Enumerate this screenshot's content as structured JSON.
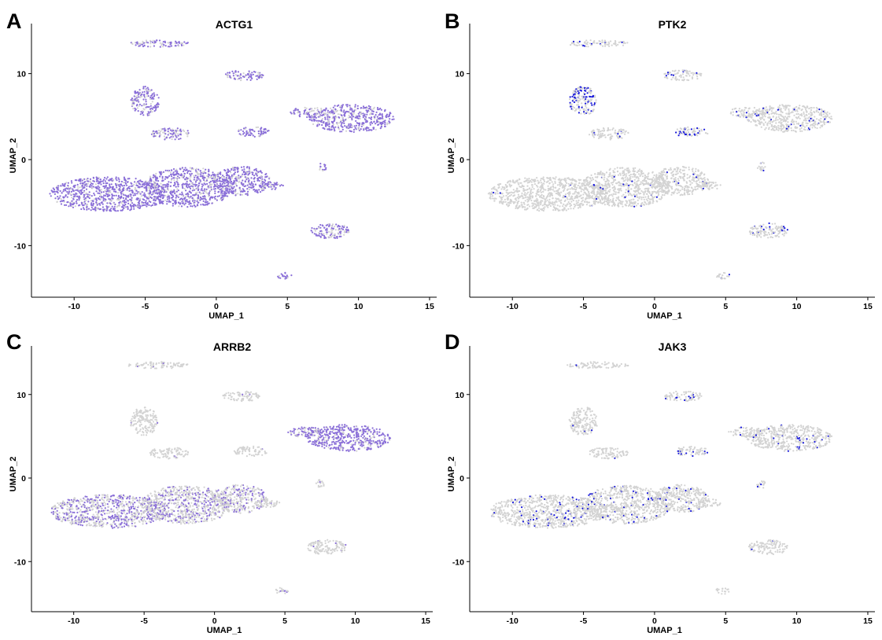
{
  "chart_data": [
    {
      "type": "scatter",
      "panel": "A",
      "title": "ACTG1",
      "xlabel": "UMAP_1",
      "ylabel": "UMAP_2",
      "xlim": [
        -13,
        15.5
      ],
      "ylim": [
        -16,
        16
      ],
      "xticks": [
        -10,
        -5,
        0,
        5,
        10,
        15
      ],
      "yticks": [
        -10,
        0,
        10
      ],
      "low_color": "#d3d3d3",
      "high_color": "#8a6fd8",
      "clusters": [
        {
          "cx": -7.5,
          "cy": -4.0,
          "rx": 4.2,
          "ry": 2.0,
          "level": 0.85
        },
        {
          "cx": -2.0,
          "cy": -3.2,
          "rx": 3.2,
          "ry": 2.3,
          "level": 0.8
        },
        {
          "cx": 1.8,
          "cy": -2.5,
          "rx": 2.0,
          "ry": 1.7,
          "level": 0.8
        },
        {
          "cx": 3.8,
          "cy": -3.0,
          "rx": 0.9,
          "ry": 0.5,
          "level": 0.7
        },
        {
          "cx": -5.0,
          "cy": 6.8,
          "rx": 1.0,
          "ry": 1.7,
          "level": 0.7
        },
        {
          "cx": -3.2,
          "cy": 3.0,
          "rx": 1.4,
          "ry": 0.7,
          "level": 0.6
        },
        {
          "cx": 2.6,
          "cy": 3.2,
          "rx": 1.2,
          "ry": 0.6,
          "level": 0.9
        },
        {
          "cx": 9.5,
          "cy": 4.8,
          "rx": 3.0,
          "ry": 1.6,
          "level": 0.75
        },
        {
          "cx": 6.5,
          "cy": 5.5,
          "rx": 1.3,
          "ry": 0.6,
          "level": 0.6
        },
        {
          "cx": 2.0,
          "cy": 9.8,
          "rx": 1.4,
          "ry": 0.6,
          "level": 0.7
        },
        {
          "cx": -4.0,
          "cy": 13.5,
          "rx": 2.2,
          "ry": 0.4,
          "level": 0.7
        },
        {
          "cx": 8.0,
          "cy": -8.3,
          "rx": 1.4,
          "ry": 0.9,
          "level": 0.7
        },
        {
          "cx": 4.8,
          "cy": -13.5,
          "rx": 0.5,
          "ry": 0.4,
          "level": 0.7
        },
        {
          "cx": 7.5,
          "cy": -0.8,
          "rx": 0.3,
          "ry": 0.6,
          "level": 0.6
        }
      ]
    },
    {
      "type": "scatter",
      "panel": "B",
      "title": "PTK2",
      "xlabel": "UMAP_1",
      "ylabel": "UMAP_2",
      "xlim": [
        -13,
        15.5
      ],
      "ylim": [
        -16,
        16
      ],
      "xticks": [
        -10,
        -5,
        0,
        5,
        10,
        15
      ],
      "yticks": [
        -10,
        0,
        10
      ],
      "low_color": "#d3d3d3",
      "high_color": "#1a1adb",
      "clusters": [
        {
          "cx": -7.5,
          "cy": -4.0,
          "rx": 4.2,
          "ry": 2.0,
          "level": 0.01
        },
        {
          "cx": -2.0,
          "cy": -3.2,
          "rx": 3.2,
          "ry": 2.3,
          "level": 0.02
        },
        {
          "cx": 1.8,
          "cy": -2.5,
          "rx": 2.0,
          "ry": 1.7,
          "level": 0.02
        },
        {
          "cx": 3.8,
          "cy": -3.0,
          "rx": 0.9,
          "ry": 0.5,
          "level": 0.05
        },
        {
          "cx": -5.0,
          "cy": 6.8,
          "rx": 1.0,
          "ry": 1.7,
          "level": 0.35
        },
        {
          "cx": -3.2,
          "cy": 3.0,
          "rx": 1.4,
          "ry": 0.7,
          "level": 0.03
        },
        {
          "cx": 2.6,
          "cy": 3.2,
          "rx": 1.2,
          "ry": 0.6,
          "level": 0.4
        },
        {
          "cx": 9.5,
          "cy": 4.8,
          "rx": 3.0,
          "ry": 1.6,
          "level": 0.06
        },
        {
          "cx": 6.5,
          "cy": 5.5,
          "rx": 1.3,
          "ry": 0.6,
          "level": 0.05
        },
        {
          "cx": 2.0,
          "cy": 9.8,
          "rx": 1.4,
          "ry": 0.6,
          "level": 0.12
        },
        {
          "cx": -4.0,
          "cy": 13.5,
          "rx": 2.2,
          "ry": 0.4,
          "level": 0.12
        },
        {
          "cx": 8.0,
          "cy": -8.3,
          "rx": 1.4,
          "ry": 0.9,
          "level": 0.15
        },
        {
          "cx": 4.8,
          "cy": -13.5,
          "rx": 0.5,
          "ry": 0.4,
          "level": 0.05
        },
        {
          "cx": 7.5,
          "cy": -0.8,
          "rx": 0.3,
          "ry": 0.6,
          "level": 0.2
        }
      ]
    },
    {
      "type": "scatter",
      "panel": "C",
      "title": "ARRB2",
      "xlabel": "UMAP_1",
      "ylabel": "UMAP_2",
      "xlim": [
        -13,
        15.5
      ],
      "ylim": [
        -16,
        16
      ],
      "xticks": [
        -10,
        -5,
        0,
        5,
        10,
        15
      ],
      "yticks": [
        -10,
        0,
        10
      ],
      "low_color": "#d3d3d3",
      "high_color": "#8a6fd8",
      "clusters": [
        {
          "cx": -7.5,
          "cy": -4.0,
          "rx": 4.2,
          "ry": 2.0,
          "level": 0.45
        },
        {
          "cx": -2.0,
          "cy": -3.2,
          "rx": 3.2,
          "ry": 2.3,
          "level": 0.3
        },
        {
          "cx": 1.8,
          "cy": -2.5,
          "rx": 2.0,
          "ry": 1.7,
          "level": 0.3
        },
        {
          "cx": 3.8,
          "cy": -3.0,
          "rx": 0.9,
          "ry": 0.5,
          "level": 0.05
        },
        {
          "cx": -5.0,
          "cy": 6.8,
          "rx": 1.0,
          "ry": 1.7,
          "level": 0.02
        },
        {
          "cx": -3.2,
          "cy": 3.0,
          "rx": 1.4,
          "ry": 0.7,
          "level": 0.02
        },
        {
          "cx": 2.6,
          "cy": 3.2,
          "rx": 1.2,
          "ry": 0.6,
          "level": 0.03
        },
        {
          "cx": 9.5,
          "cy": 4.8,
          "rx": 3.0,
          "ry": 1.6,
          "level": 0.85
        },
        {
          "cx": 6.5,
          "cy": 5.5,
          "rx": 1.3,
          "ry": 0.6,
          "level": 0.7
        },
        {
          "cx": 2.0,
          "cy": 9.8,
          "rx": 1.4,
          "ry": 0.6,
          "level": 0.02
        },
        {
          "cx": -4.0,
          "cy": 13.5,
          "rx": 2.2,
          "ry": 0.4,
          "level": 0.02
        },
        {
          "cx": 8.0,
          "cy": -8.3,
          "rx": 1.4,
          "ry": 0.9,
          "level": 0.03
        },
        {
          "cx": 4.8,
          "cy": -13.5,
          "rx": 0.5,
          "ry": 0.4,
          "level": 0.4
        },
        {
          "cx": 7.5,
          "cy": -0.8,
          "rx": 0.3,
          "ry": 0.6,
          "level": 0.05
        }
      ]
    },
    {
      "type": "scatter",
      "panel": "D",
      "title": "JAK3",
      "xlabel": "UMAP_1",
      "ylabel": "UMAP_2",
      "xlim": [
        -13,
        15.5
      ],
      "ylim": [
        -16,
        16
      ],
      "xticks": [
        -10,
        -5,
        0,
        5,
        10,
        15
      ],
      "yticks": [
        -10,
        0,
        10
      ],
      "low_color": "#d3d3d3",
      "high_color": "#1a1adb",
      "clusters": [
        {
          "cx": -7.5,
          "cy": -4.0,
          "rx": 4.2,
          "ry": 2.0,
          "level": 0.08
        },
        {
          "cx": -2.0,
          "cy": -3.2,
          "rx": 3.2,
          "ry": 2.3,
          "level": 0.08
        },
        {
          "cx": 1.8,
          "cy": -2.5,
          "rx": 2.0,
          "ry": 1.7,
          "level": 0.06
        },
        {
          "cx": 3.8,
          "cy": -3.0,
          "rx": 0.9,
          "ry": 0.5,
          "level": 0.03
        },
        {
          "cx": -5.0,
          "cy": 6.8,
          "rx": 1.0,
          "ry": 1.7,
          "level": 0.02
        },
        {
          "cx": -3.2,
          "cy": 3.0,
          "rx": 1.4,
          "ry": 0.7,
          "level": 0.02
        },
        {
          "cx": 2.6,
          "cy": 3.2,
          "rx": 1.2,
          "ry": 0.6,
          "level": 0.1
        },
        {
          "cx": 9.5,
          "cy": 4.8,
          "rx": 3.0,
          "ry": 1.6,
          "level": 0.05
        },
        {
          "cx": 6.5,
          "cy": 5.5,
          "rx": 1.3,
          "ry": 0.6,
          "level": 0.04
        },
        {
          "cx": 2.0,
          "cy": 9.8,
          "rx": 1.4,
          "ry": 0.6,
          "level": 0.08
        },
        {
          "cx": -4.0,
          "cy": 13.5,
          "rx": 2.2,
          "ry": 0.4,
          "level": 0.03
        },
        {
          "cx": 8.0,
          "cy": -8.3,
          "rx": 1.4,
          "ry": 0.9,
          "level": 0.03
        },
        {
          "cx": 4.8,
          "cy": -13.5,
          "rx": 0.5,
          "ry": 0.4,
          "level": 0.03
        },
        {
          "cx": 7.5,
          "cy": -0.8,
          "rx": 0.3,
          "ry": 0.6,
          "level": 0.1
        }
      ]
    }
  ]
}
